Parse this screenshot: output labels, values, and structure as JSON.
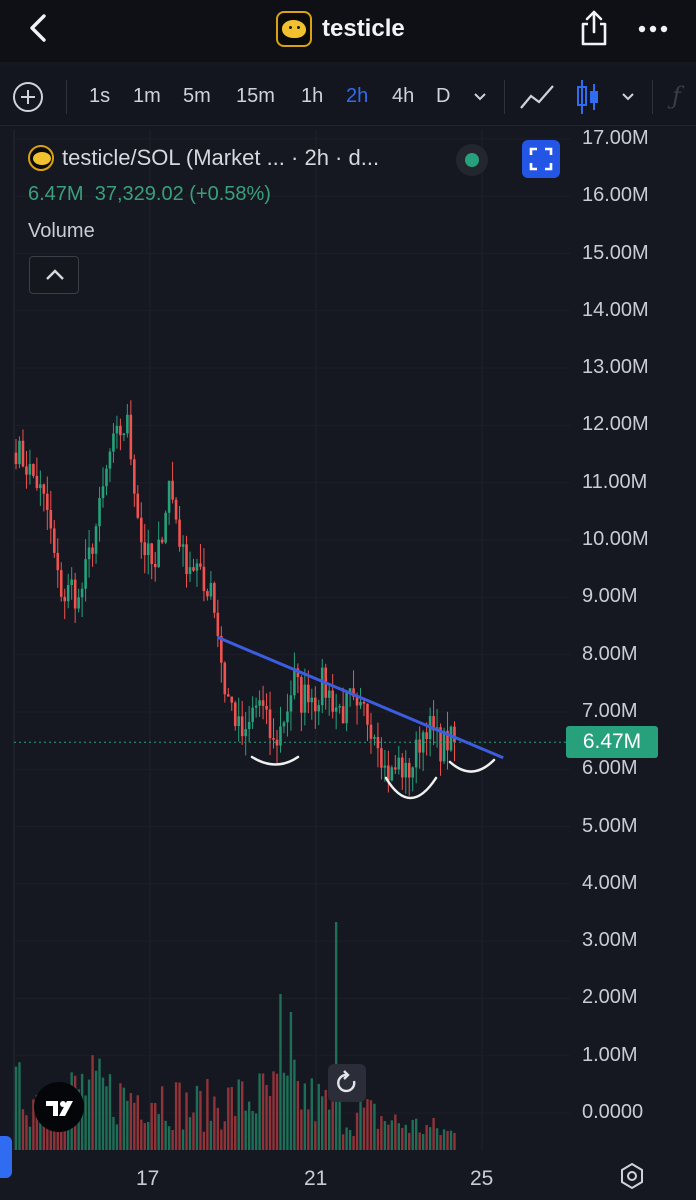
{
  "header": {
    "title": "testicle",
    "back_icon": "chevron-left-icon",
    "share_icon": "share-icon",
    "more_icon": "more-dots-icon"
  },
  "toolbar": {
    "add_icon": "plus-circle-icon",
    "timeframes": [
      "1s",
      "1m",
      "5m",
      "15m",
      "1h",
      "2h",
      "4h",
      "D"
    ],
    "active_timeframe": "2h",
    "active_color": "#2f6cf2",
    "chart_style_icon": "line-chart-icon",
    "candle_icon": "candlestick-icon",
    "indicators_icon": "function-icon",
    "indicators_glyph": "ƒ"
  },
  "legend": {
    "symbol": "testicle/SOL (Market ... · 2h · d...",
    "price": "6.47M",
    "change": "37,329.02 (+0.58%)",
    "indicator": "Volume",
    "status_color": "#26a17b"
  },
  "price_axis": {
    "labels": [
      "17.00M",
      "16.00M",
      "15.00M",
      "14.00M",
      "13.00M",
      "12.00M",
      "11.00M",
      "10.00M",
      "9.00M",
      "8.00M",
      "7.00M",
      "6.00M",
      "5.00M",
      "4.00M",
      "3.00M",
      "2.00M",
      "1.00M",
      "0.0000"
    ],
    "current_price": "6.47M",
    "current_color": "#26a17b"
  },
  "time_axis": {
    "labels": [
      "17",
      "21",
      "25"
    ]
  },
  "colors": {
    "up": "#26a17b",
    "down": "#ef5350",
    "trendline": "#3d5de0",
    "background": "#151721"
  },
  "chart_data": {
    "type": "candlestick",
    "symbol": "testicle/SOL",
    "interval": "2h",
    "price_unit": "M",
    "ylim": [
      0,
      17
    ],
    "x_ticks": [
      "17",
      "21",
      "25"
    ],
    "close_path": [
      [
        0,
        11.6
      ],
      [
        3,
        11.3
      ],
      [
        6,
        11.0
      ],
      [
        9,
        10.5
      ],
      [
        12,
        9.3
      ],
      [
        14,
        9.0
      ],
      [
        16,
        9.2
      ],
      [
        18,
        8.9
      ],
      [
        21,
        9.7
      ],
      [
        24,
        10.5
      ],
      [
        27,
        11.5
      ],
      [
        30,
        11.9
      ],
      [
        32,
        12.0
      ],
      [
        34,
        11.0
      ],
      [
        36,
        10.0
      ],
      [
        38,
        9.7
      ],
      [
        40,
        9.4
      ],
      [
        42,
        10.2
      ],
      [
        44,
        11.0
      ],
      [
        46,
        10.4
      ],
      [
        48,
        9.7
      ],
      [
        50,
        9.6
      ],
      [
        52,
        9.5
      ],
      [
        54,
        9.1
      ],
      [
        56,
        9.3
      ],
      [
        58,
        8.4
      ],
      [
        60,
        7.4
      ],
      [
        62,
        7.1
      ],
      [
        64,
        6.7
      ],
      [
        66,
        6.5
      ],
      [
        68,
        7.0
      ],
      [
        70,
        7.2
      ],
      [
        72,
        6.8
      ],
      [
        74,
        6.4
      ],
      [
        76,
        6.7
      ],
      [
        78,
        7.1
      ],
      [
        80,
        7.6
      ],
      [
        82,
        7.2
      ],
      [
        84,
        7.4
      ],
      [
        86,
        7.2
      ],
      [
        88,
        7.5
      ],
      [
        90,
        7.3
      ],
      [
        92,
        7.1
      ],
      [
        94,
        7.0
      ],
      [
        96,
        7.2
      ],
      [
        98,
        6.9
      ],
      [
        100,
        7.0
      ],
      [
        102,
        6.8
      ],
      [
        104,
        6.6
      ],
      [
        106,
        6.0
      ],
      [
        108,
        5.9
      ],
      [
        110,
        6.1
      ],
      [
        112,
        5.9
      ],
      [
        114,
        6.1
      ],
      [
        116,
        6.5
      ],
      [
        118,
        6.8
      ],
      [
        120,
        6.6
      ],
      [
        122,
        6.4
      ],
      [
        124,
        6.5
      ],
      [
        126,
        6.47
      ]
    ],
    "volume_profile": [
      [
        0,
        1.1
      ],
      [
        10,
        0.9
      ],
      [
        20,
        1.2
      ],
      [
        30,
        1.0
      ],
      [
        40,
        1.1
      ],
      [
        50,
        0.8
      ],
      [
        60,
        0.9
      ],
      [
        70,
        1.0
      ],
      [
        80,
        1.1
      ],
      [
        90,
        0.8
      ],
      [
        96,
        0.6
      ],
      [
        100,
        0.7
      ],
      [
        110,
        0.5
      ],
      [
        120,
        0.4
      ],
      [
        126,
        0.3
      ]
    ],
    "volume_spikes": [
      {
        "index": 76,
        "value": 2.6
      },
      {
        "index": 79,
        "value": 2.3
      },
      {
        "index": 92,
        "value": 3.8
      }
    ],
    "trendline": {
      "from": [
        58,
        8.3
      ],
      "to": [
        140,
        6.2
      ]
    },
    "current_price": 6.47
  }
}
